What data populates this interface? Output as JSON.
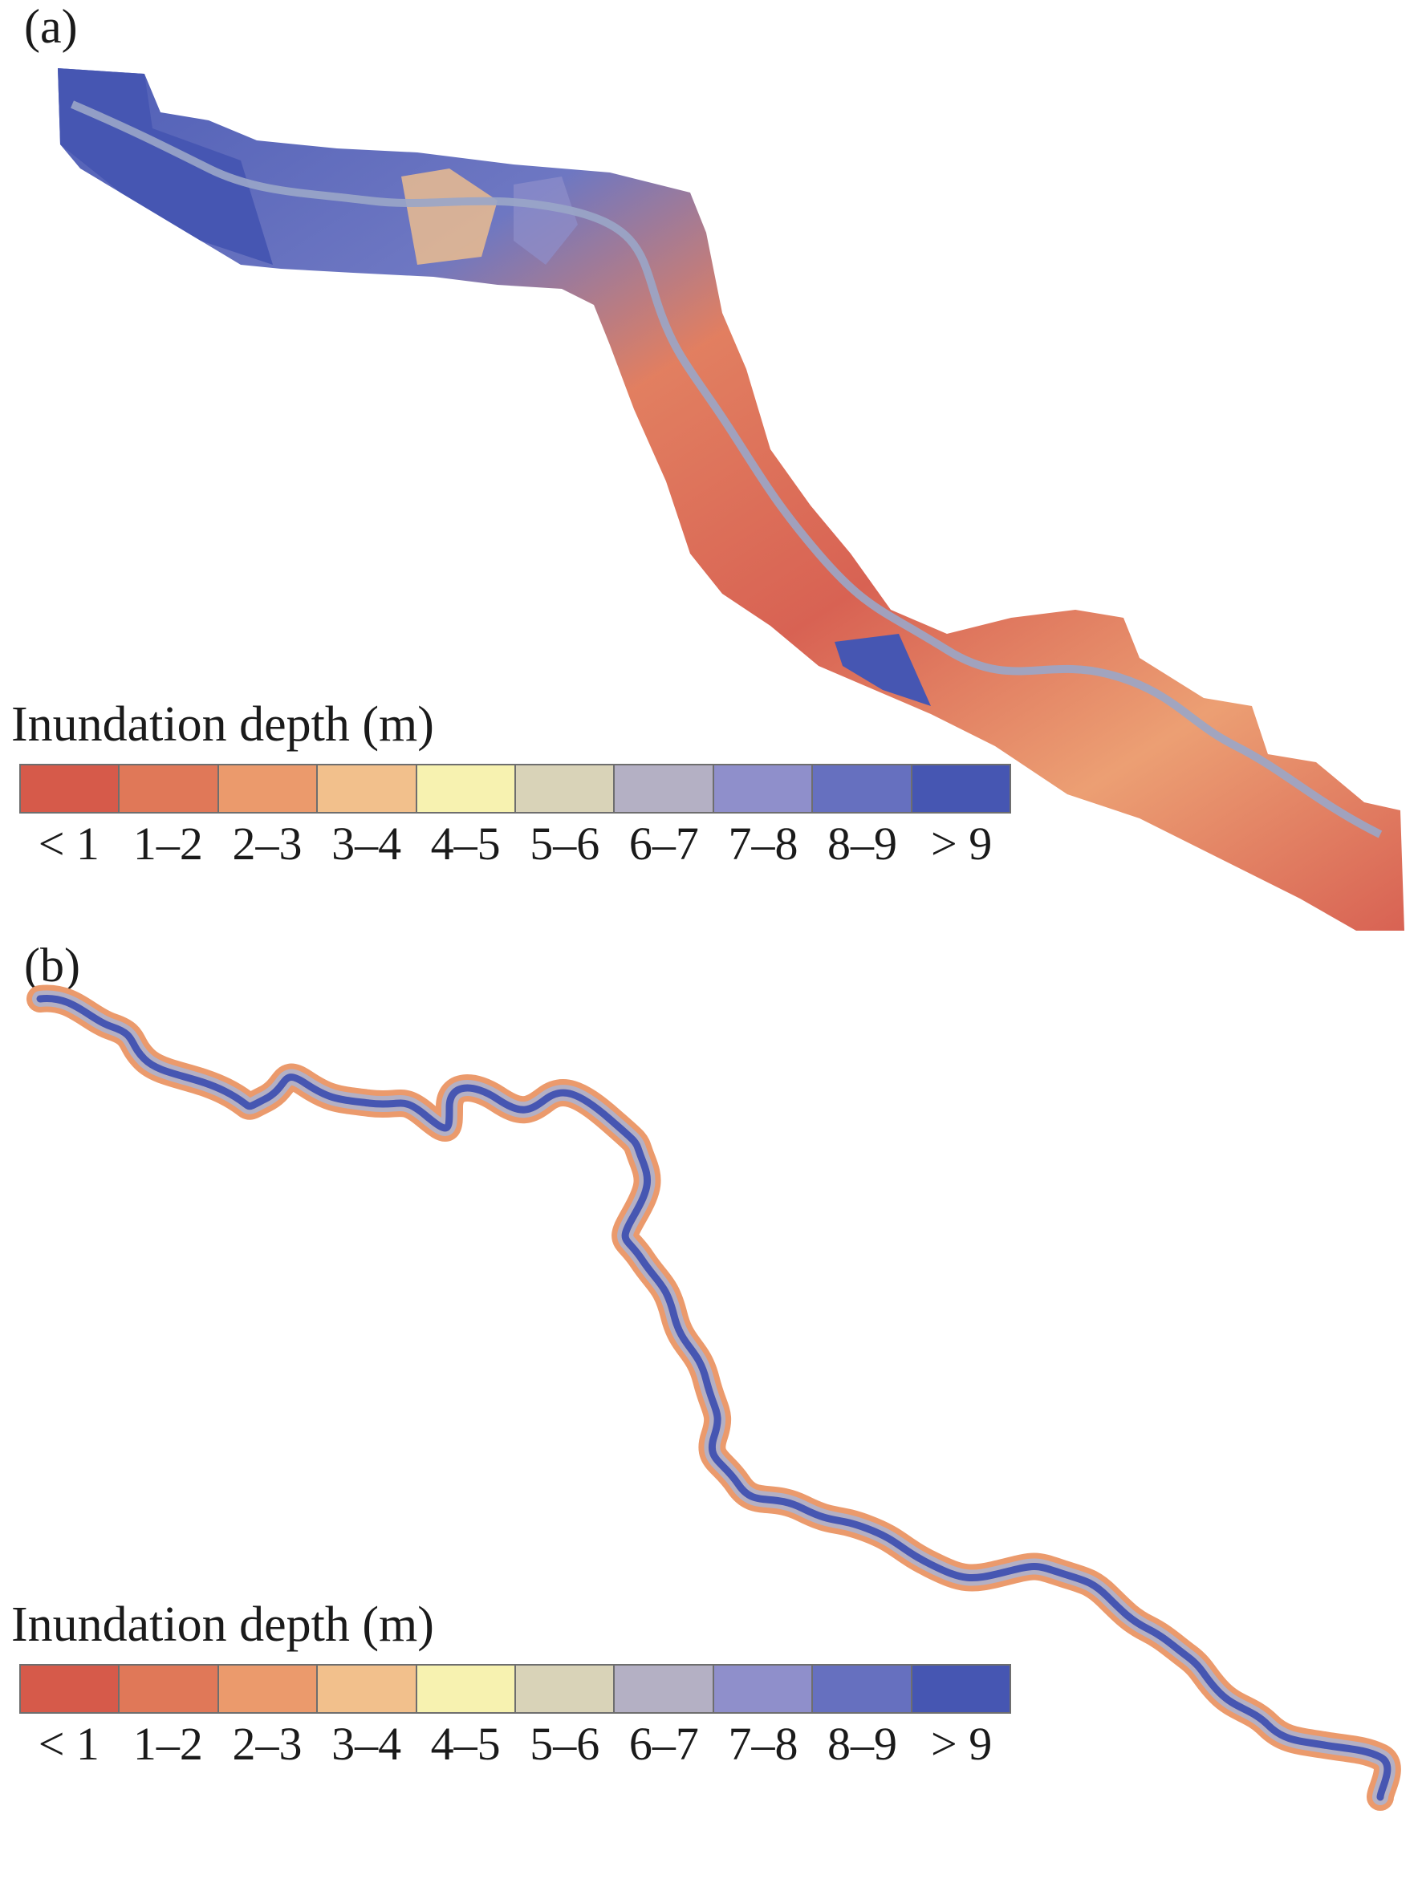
{
  "figure": {
    "panels": [
      {
        "label": "(a)"
      },
      {
        "label": "(b)"
      }
    ],
    "legend": {
      "title": "Inundation depth (m)",
      "classes": [
        {
          "label": "< 1",
          "color": "#d65a4a"
        },
        {
          "label": "1–2",
          "color": "#e07858"
        },
        {
          "label": "2–3",
          "color": "#eb9a6c"
        },
        {
          "label": "3–4",
          "color": "#f2c08c"
        },
        {
          "label": "4–5",
          "color": "#f7f2b0"
        },
        {
          "label": "5–6",
          "color": "#d9d3b8"
        },
        {
          "label": "6–7",
          "color": "#b4b0c4"
        },
        {
          "label": "7–8",
          "color": "#8f8fcb"
        },
        {
          "label": "8–9",
          "color": "#6670bf"
        },
        {
          "label": "> 9",
          "color": "#4656b2"
        }
      ]
    }
  }
}
